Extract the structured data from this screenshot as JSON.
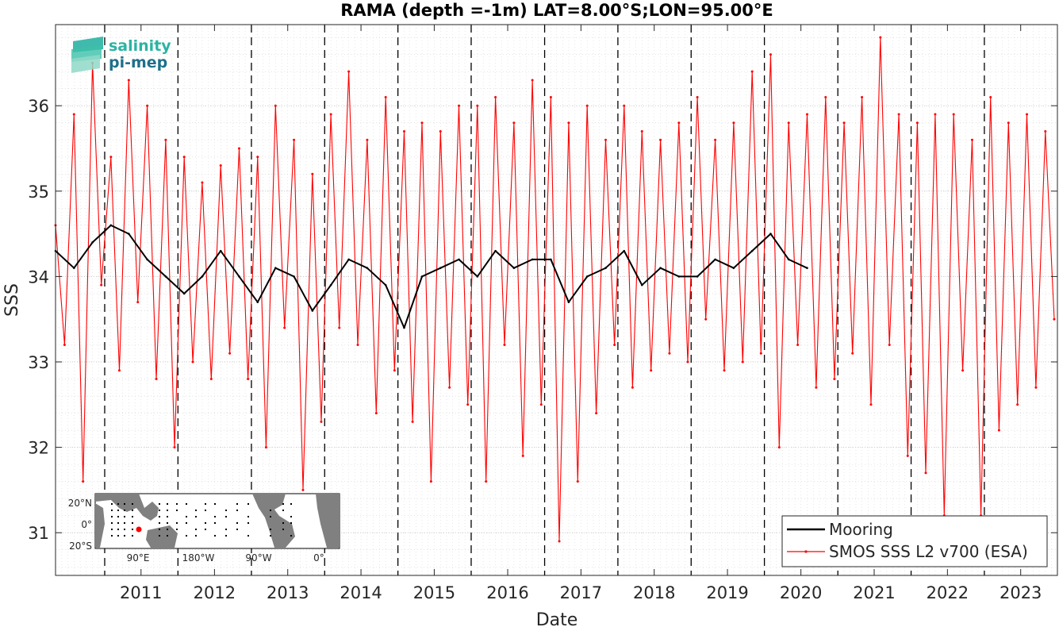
{
  "chart_data": {
    "type": "line",
    "title": "RAMA (depth =-1m) LAT=8.00°S;LON=95.00°E",
    "xlabel": "Date",
    "ylabel": "SSS",
    "xlim": [
      "2010-05-01",
      "2023-12-31"
    ],
    "ylim": [
      30.5,
      36.95
    ],
    "grid": true,
    "xticks": [
      "2011",
      "2012",
      "2013",
      "2014",
      "2015",
      "2016",
      "2017",
      "2018",
      "2019",
      "2020",
      "2021",
      "2022",
      "2023"
    ],
    "yticks": [
      31,
      32,
      33,
      34,
      35,
      36
    ],
    "year_boundaries": [
      "2011-01-01",
      "2012-01-01",
      "2013-01-01",
      "2014-01-01",
      "2015-01-01",
      "2016-01-01",
      "2017-01-01",
      "2018-01-01",
      "2019-01-01",
      "2020-01-01",
      "2021-01-01",
      "2022-01-01",
      "2023-01-01"
    ],
    "legend_position": "bottom-right",
    "series": [
      {
        "name": "Mooring",
        "color": "#000000",
        "x": [
          "2010-05-01",
          "2010-08-01",
          "2010-11-01",
          "2011-02-01",
          "2011-05-01",
          "2011-08-01",
          "2011-11-01",
          "2012-02-01",
          "2012-05-01",
          "2012-08-01",
          "2012-11-01",
          "2013-02-01",
          "2013-05-01",
          "2013-08-01",
          "2013-11-01",
          "2014-02-01",
          "2014-05-01",
          "2014-08-01",
          "2014-11-01",
          "2015-02-01",
          "2015-05-01",
          "2015-08-01",
          "2015-11-01",
          "2016-02-01",
          "2016-05-01",
          "2016-08-01",
          "2016-11-01",
          "2017-02-01",
          "2017-05-01",
          "2017-08-01",
          "2017-11-01",
          "2018-02-01",
          "2018-05-01",
          "2018-08-01",
          "2018-11-01",
          "2019-02-01",
          "2019-05-01",
          "2019-08-01",
          "2019-11-01",
          "2020-02-01",
          "2020-05-01",
          "2020-08-01"
        ],
        "y": [
          34.3,
          34.1,
          34.4,
          34.6,
          34.5,
          34.2,
          34.0,
          33.8,
          34.0,
          34.3,
          34.0,
          33.7,
          34.1,
          34.0,
          33.6,
          33.9,
          34.2,
          34.1,
          33.9,
          33.4,
          34.0,
          34.1,
          34.2,
          34.0,
          34.3,
          34.1,
          34.2,
          34.2,
          33.7,
          34.0,
          34.1,
          34.3,
          33.9,
          34.1,
          34.0,
          34.0,
          34.2,
          34.1,
          34.3,
          34.5,
          34.2,
          34.1
        ]
      },
      {
        "name": "SMOS SSS L2 v700 (ESA)",
        "color": "#ff0000",
        "x": [
          "2010-05-01",
          "2010-06-15",
          "2010-08-01",
          "2010-09-15",
          "2010-11-01",
          "2010-12-15",
          "2011-02-01",
          "2011-03-15",
          "2011-05-01",
          "2011-06-15",
          "2011-08-01",
          "2011-09-15",
          "2011-11-01",
          "2011-12-15",
          "2012-02-01",
          "2012-03-15",
          "2012-05-01",
          "2012-06-15",
          "2012-08-01",
          "2012-09-15",
          "2012-11-01",
          "2012-12-15",
          "2013-02-01",
          "2013-03-15",
          "2013-05-01",
          "2013-06-15",
          "2013-08-01",
          "2013-09-15",
          "2013-11-01",
          "2013-12-15",
          "2014-02-01",
          "2014-03-15",
          "2014-05-01",
          "2014-06-15",
          "2014-08-01",
          "2014-09-15",
          "2014-11-01",
          "2014-12-15",
          "2015-02-01",
          "2015-03-15",
          "2015-05-01",
          "2015-06-15",
          "2015-08-01",
          "2015-09-15",
          "2015-11-01",
          "2015-12-15",
          "2016-02-01",
          "2016-03-15",
          "2016-05-01",
          "2016-06-15",
          "2016-08-01",
          "2016-09-15",
          "2016-11-01",
          "2016-12-15",
          "2017-02-01",
          "2017-03-15",
          "2017-05-01",
          "2017-06-15",
          "2017-08-01",
          "2017-09-15",
          "2017-11-01",
          "2017-12-15",
          "2018-02-01",
          "2018-03-15",
          "2018-05-01",
          "2018-06-15",
          "2018-08-01",
          "2018-09-15",
          "2018-11-01",
          "2018-12-15",
          "2019-02-01",
          "2019-03-15",
          "2019-05-01",
          "2019-06-15",
          "2019-08-01",
          "2019-09-15",
          "2019-11-01",
          "2019-12-15",
          "2020-02-01",
          "2020-03-15",
          "2020-05-01",
          "2020-06-15",
          "2020-08-01",
          "2020-09-15",
          "2020-11-01",
          "2020-12-15",
          "2021-02-01",
          "2021-03-15",
          "2021-05-01",
          "2021-06-15",
          "2021-08-01",
          "2021-09-15",
          "2021-11-01",
          "2021-12-15",
          "2022-02-01",
          "2022-03-15",
          "2022-05-01",
          "2022-06-15",
          "2022-08-01",
          "2022-09-15",
          "2022-11-01",
          "2022-12-15",
          "2023-02-01",
          "2023-03-15",
          "2023-05-01",
          "2023-06-15",
          "2023-08-01",
          "2023-09-15",
          "2023-11-01",
          "2023-12-15"
        ],
        "y": [
          34.6,
          33.2,
          35.9,
          31.6,
          36.5,
          33.9,
          35.4,
          32.9,
          36.3,
          33.7,
          36.0,
          32.8,
          35.6,
          32.0,
          35.4,
          33.0,
          35.1,
          32.8,
          35.3,
          33.1,
          35.5,
          32.8,
          35.4,
          32.0,
          36.0,
          33.4,
          35.6,
          31.5,
          35.2,
          32.3,
          35.9,
          33.4,
          36.4,
          33.2,
          35.6,
          32.4,
          36.1,
          32.9,
          35.7,
          32.3,
          35.8,
          31.6,
          35.7,
          32.7,
          36.0,
          32.5,
          36.0,
          31.6,
          36.1,
          33.2,
          35.8,
          31.9,
          36.3,
          32.5,
          36.1,
          30.9,
          35.8,
          31.6,
          36.0,
          32.4,
          35.6,
          33.2,
          36.0,
          32.7,
          35.7,
          32.9,
          35.6,
          33.1,
          35.8,
          33.0,
          36.1,
          33.5,
          35.6,
          32.9,
          35.8,
          33.0,
          36.4,
          33.1,
          36.6,
          32.0,
          35.8,
          33.2,
          35.9,
          32.7,
          36.1,
          32.8,
          35.8,
          33.1,
          36.1,
          32.5,
          36.8,
          33.2,
          35.9,
          31.9,
          35.8,
          31.7,
          35.9,
          31.2,
          35.9,
          32.9,
          35.6,
          31.2,
          36.1,
          32.2,
          35.8,
          32.5,
          35.9,
          32.7,
          35.7,
          33.5
        ]
      }
    ]
  },
  "logo": {
    "line1": "salinity",
    "line2": "pi-mep",
    "color1": "#2bb3a3",
    "color2": "#1f6f8b"
  },
  "inset_map": {
    "lat_labels": [
      "20°N",
      "0°",
      "20°S"
    ],
    "lon_labels": [
      "90°E",
      "180°W",
      "90°W",
      "0°"
    ],
    "ocean_color": "#ffffff",
    "land_color": "#808080",
    "marker_color": "#ff0000"
  }
}
